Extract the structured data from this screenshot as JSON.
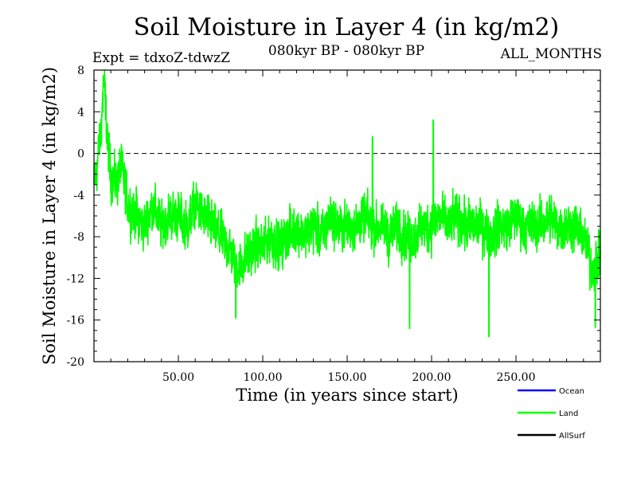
{
  "chart_data": {
    "type": "line",
    "title": "Soil Moisture in Layer 4 (in kg/m2)",
    "subtitle": "080kyr BP - 080kyr BP",
    "expt_label": "Expt = tdxoZ-tdwzZ",
    "months_label": "ALL_MONTHS",
    "xlabel": "Time (in years since start)",
    "ylabel": "Soil Moisture in Layer 4 (in kg/m2)",
    "xlim": [
      0,
      300
    ],
    "ylim": [
      -20,
      8
    ],
    "x_ticks": [
      50,
      100,
      150,
      200,
      250
    ],
    "x_tick_labels": [
      "50.00",
      "100.00",
      "150.00",
      "200.00",
      "250.00"
    ],
    "y_ticks": [
      8,
      4,
      0,
      -4,
      -8,
      -12,
      -16,
      -20
    ],
    "y_tick_labels": [
      "8",
      "4",
      "0",
      "-4",
      "-8",
      "-12",
      "-16",
      "-20"
    ],
    "reference_line": 0,
    "legend_position": "bottom-right",
    "series": [
      {
        "name": "Ocean",
        "color": "#0000ff",
        "x": [],
        "y": []
      },
      {
        "name": "Land",
        "color": "#00ff00",
        "x": [
          0,
          2,
          4,
          6,
          8,
          10,
          13,
          16,
          20,
          25,
          30,
          35,
          40,
          45,
          50,
          55,
          60,
          65,
          70,
          75,
          80,
          85,
          90,
          95,
          100,
          105,
          110,
          115,
          120,
          125,
          130,
          135,
          140,
          145,
          150,
          155,
          160,
          165,
          170,
          175,
          180,
          185,
          190,
          195,
          200,
          205,
          210,
          215,
          220,
          225,
          230,
          235,
          240,
          245,
          250,
          255,
          260,
          265,
          270,
          275,
          280,
          285,
          290,
          295,
          300
        ],
        "y": [
          -3,
          -1,
          2,
          7,
          1,
          -2,
          -3,
          -1,
          -5,
          -6,
          -7,
          -5,
          -7,
          -6,
          -6,
          -7,
          -5,
          -6,
          -7,
          -8,
          -9,
          -11,
          -10,
          -9,
          -9,
          -8,
          -9,
          -8,
          -7,
          -8,
          -7,
          -8,
          -6,
          -7,
          -7,
          -7,
          -6,
          -7,
          -7,
          -8,
          -7,
          -8,
          -8,
          -7,
          -7,
          -6,
          -7,
          -6,
          -7,
          -7,
          -7,
          -8,
          -7,
          -7,
          -6,
          -7,
          -7,
          -7,
          -6,
          -7,
          -7,
          -7,
          -8,
          -11,
          -10
        ],
        "noise_amplitude": 3.2,
        "peaks": [
          {
            "x": 5.5,
            "y": 7.4
          },
          {
            "x": 165,
            "y": 1.6
          },
          {
            "x": 201,
            "y": 3.2
          }
        ],
        "troughs": [
          {
            "x": 84,
            "y": -15.8
          },
          {
            "x": 187,
            "y": -16.8
          },
          {
            "x": 234,
            "y": -17.6
          },
          {
            "x": 297,
            "y": -16.7
          }
        ]
      },
      {
        "name": "AllSurf",
        "color": "#000000",
        "x": [],
        "y": []
      }
    ]
  }
}
